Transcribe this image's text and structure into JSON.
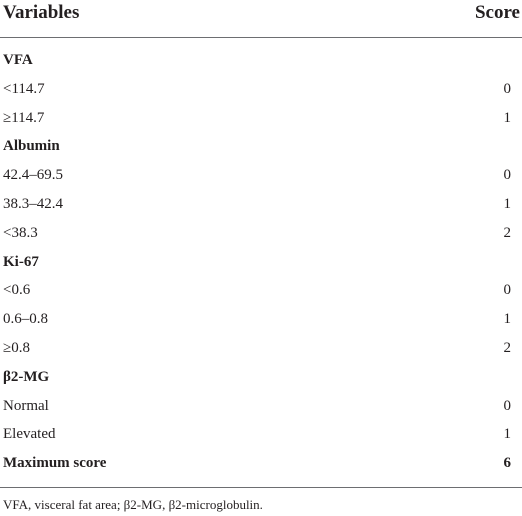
{
  "header": {
    "variables": "Variables",
    "score": "Score"
  },
  "rows": [
    {
      "label": "VFA",
      "score": "",
      "type": "section"
    },
    {
      "label": "<114.7",
      "score": "0",
      "type": "item"
    },
    {
      "label": "≥114.7",
      "score": "1",
      "type": "item"
    },
    {
      "label": "Albumin",
      "score": "",
      "type": "section"
    },
    {
      "label": "42.4–69.5",
      "score": "0",
      "type": "item"
    },
    {
      "label": "38.3–42.4",
      "score": "1",
      "type": "item"
    },
    {
      "label": "<38.3",
      "score": "2",
      "type": "item"
    },
    {
      "label": "Ki-67",
      "score": "",
      "type": "section"
    },
    {
      "label": "<0.6",
      "score": "0",
      "type": "item"
    },
    {
      "label": "0.6–0.8",
      "score": "1",
      "type": "item"
    },
    {
      "label": "≥0.8",
      "score": "2",
      "type": "item"
    },
    {
      "label": "β2-MG",
      "score": "",
      "type": "section"
    },
    {
      "label": "Normal",
      "score": "0",
      "type": "item"
    },
    {
      "label": "Elevated",
      "score": "1",
      "type": "item"
    },
    {
      "label": "Maximum score",
      "score": "6",
      "type": "total"
    }
  ],
  "footnote": "VFA, visceral fat area; β2-MG, β2-microglobulin."
}
